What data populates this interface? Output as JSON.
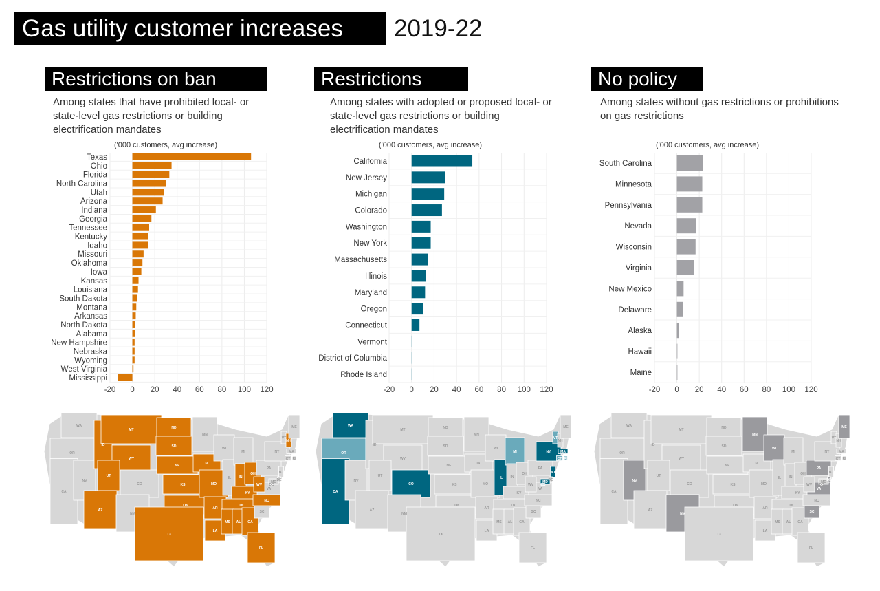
{
  "header": {
    "title": "Gas utility customer increases",
    "years": "2019-22"
  },
  "colors": {
    "ban": "#d97706",
    "restrictions": "#006680",
    "restrictions_light": "#6aaabb",
    "nopolicy": "#a2a2a6",
    "nopolicy_map": "#9a9a9e",
    "map_base": "#d7d7d7"
  },
  "panels": [
    {
      "title": "Restrictions on ban",
      "subtitle": [
        "Among states that have prohibited local- or",
        "state-level gas restrictions or building",
        "electrification mandates"
      ]
    },
    {
      "title": "Restrictions",
      "subtitle": [
        "Among states with adopted or proposed local- or",
        "state-level gas restrictions or building",
        "electrification mandates"
      ]
    },
    {
      "title": "No policy",
      "subtitle": [
        "Among states without gas restrictions or prohibitions",
        "on gas restrictions"
      ]
    }
  ],
  "chart_data": [
    {
      "type": "bar",
      "orientation": "horizontal",
      "title": "Restrictions on ban",
      "xlabel": "('000 customers, avg increase)",
      "ylabel": "",
      "xlim": [
        -20,
        120
      ],
      "xticks": [
        -20,
        0,
        20,
        40,
        60,
        80,
        100,
        120
      ],
      "grid": true,
      "color": "#d97706",
      "categories": [
        "Texas",
        "Ohio",
        "Florida",
        "North Carolina",
        "Utah",
        "Arizona",
        "Indiana",
        "Georgia",
        "Tennessee",
        "Kentucky",
        "Idaho",
        "Missouri",
        "Oklahoma",
        "Iowa",
        "Kansas",
        "Louisiana",
        "South Dakota",
        "Montana",
        "Arkansas",
        "North Dakota",
        "Alabama",
        "New Hampshire",
        "Nebraska",
        "Wyoming",
        "West Virginia",
        "Mississippi"
      ],
      "values": [
        106,
        35,
        33,
        30,
        28,
        27,
        21,
        17,
        15,
        14,
        14,
        10,
        9,
        8,
        5.5,
        5,
        4,
        3.5,
        3,
        2.5,
        2.5,
        2,
        2,
        2,
        1,
        -13
      ]
    },
    {
      "type": "bar",
      "orientation": "horizontal",
      "title": "Restrictions",
      "xlabel": "('000 customers, avg increase)",
      "ylabel": "",
      "xlim": [
        -20,
        120
      ],
      "xticks": [
        -20,
        0,
        20,
        40,
        60,
        80,
        100,
        120
      ],
      "grid": true,
      "color": "#006680",
      "categories": [
        "California",
        "New Jersey",
        "Michigan",
        "Colorado",
        "Washington",
        "New York",
        "Massachusetts",
        "Illinois",
        "Maryland",
        "Oregon",
        "Connecticut",
        "Vermont",
        "District of Columbia",
        "Rhode Island"
      ],
      "values": [
        54,
        30,
        29,
        27,
        17,
        17,
        14.5,
        12.5,
        12,
        10.5,
        7,
        0.6,
        0.2,
        0.2
      ]
    },
    {
      "type": "bar",
      "orientation": "horizontal",
      "title": "No policy",
      "xlabel": "('000 customers, avg increase)",
      "ylabel": "",
      "xlim": [
        -20,
        120
      ],
      "xticks": [
        -20,
        0,
        20,
        40,
        60,
        80,
        100,
        120
      ],
      "grid": true,
      "color": "#a2a2a6",
      "categories": [
        "South Carolina",
        "Minnesota",
        "Pennsylvania",
        "Nevada",
        "Wisconsin",
        "Virginia",
        "New Mexico",
        "Delaware",
        "Alaska",
        "Hawaii",
        "Maine"
      ],
      "values": [
        23.5,
        22.7,
        22.7,
        17,
        16.7,
        15,
        6,
        5.4,
        1.9,
        0,
        0.3
      ]
    }
  ],
  "maps": [
    {
      "name": "ban",
      "dark": [
        "MT",
        "ND",
        "SD",
        "NE",
        "KS",
        "OK",
        "TX",
        "ID",
        "UT",
        "AZ",
        "WY",
        "IA",
        "MO",
        "AR",
        "LA",
        "MS",
        "AL",
        "GA",
        "FL",
        "TN",
        "KY",
        "IN",
        "OH",
        "WV",
        "NC",
        "NH"
      ],
      "light": []
    },
    {
      "name": "restrictions",
      "dark": [
        "WA",
        "CA",
        "CO",
        "IL",
        "NY",
        "NJ",
        "MD",
        "MA"
      ],
      "light": [
        "OR",
        "MI",
        "CT",
        "VT",
        "RI",
        "DC"
      ]
    },
    {
      "name": "nopolicy",
      "dark": [
        "NV",
        "NM",
        "MN",
        "WI",
        "PA",
        "VA",
        "SC",
        "ME",
        "DE"
      ],
      "light": []
    }
  ],
  "state_labels": [
    "WA",
    "OR",
    "CA",
    "NV",
    "ID",
    "MT",
    "WY",
    "UT",
    "AZ",
    "CO",
    "NM",
    "ND",
    "SD",
    "NE",
    "KS",
    "OK",
    "TX",
    "MN",
    "IA",
    "MO",
    "AR",
    "LA",
    "WI",
    "IL",
    "MI",
    "IN",
    "OH",
    "KY",
    "TN",
    "MS",
    "AL",
    "GA",
    "FL",
    "SC",
    "NC",
    "VA",
    "WV",
    "PA",
    "NY",
    "VT",
    "NH",
    "ME",
    "MA",
    "CT",
    "RI",
    "NJ",
    "DE",
    "MD",
    "DC"
  ]
}
